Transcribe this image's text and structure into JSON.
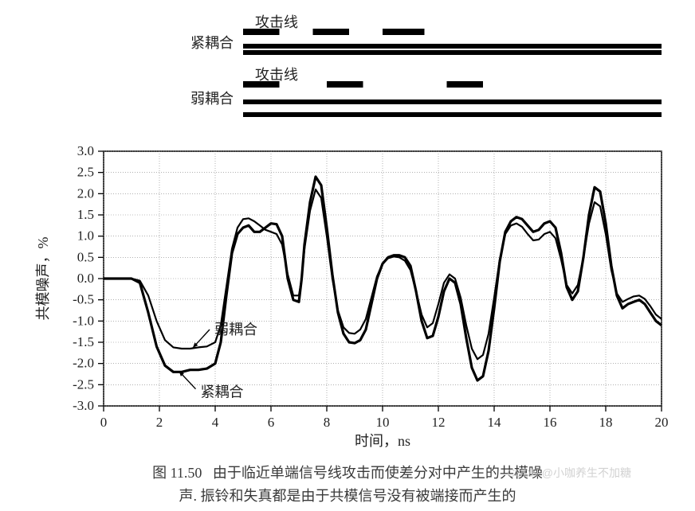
{
  "legend_diagram": {
    "label_tight_coupling": "紧耦合",
    "label_loose_coupling": "弱耦合",
    "label_attack_line": "攻击线",
    "line_color": "#000000",
    "attack_segments_tight_x": [
      [
        5.0,
        6.3
      ],
      [
        7.5,
        8.8
      ],
      [
        10.0,
        11.5
      ]
    ],
    "attack_segments_loose_x": [
      [
        5.0,
        6.3
      ],
      [
        8.0,
        9.3
      ],
      [
        12.3,
        13.6
      ]
    ],
    "full_line_x": [
      5.0,
      20.0
    ],
    "font_size": 18
  },
  "chart": {
    "type": "line",
    "background_color": "#ffffff",
    "grid_color": "#808080",
    "frame_color": "#000000",
    "xlabel": "时间，ns",
    "ylabel": "共模噪声，%",
    "label_fontsize": 18,
    "tick_fontsize": 17,
    "xlim": [
      0,
      20
    ],
    "ylim": [
      -3.0,
      3.0
    ],
    "xtick_step": 2,
    "ytick_step": 0.5,
    "line_width_main": 3.2,
    "line_width_secondary": 2.2,
    "line_color": "#000000",
    "annotation_tight": "紧耦合",
    "annotation_loose": "弱耦合",
    "series_tight": [
      [
        0.0,
        0.0
      ],
      [
        0.5,
        0.0
      ],
      [
        1.0,
        0.0
      ],
      [
        1.3,
        -0.1
      ],
      [
        1.6,
        -0.8
      ],
      [
        1.9,
        -1.6
      ],
      [
        2.2,
        -2.05
      ],
      [
        2.5,
        -2.2
      ],
      [
        2.8,
        -2.2
      ],
      [
        3.1,
        -2.15
      ],
      [
        3.4,
        -2.15
      ],
      [
        3.7,
        -2.12
      ],
      [
        4.0,
        -2.0
      ],
      [
        4.2,
        -1.5
      ],
      [
        4.4,
        -0.4
      ],
      [
        4.6,
        0.6
      ],
      [
        4.8,
        1.05
      ],
      [
        5.0,
        1.2
      ],
      [
        5.2,
        1.25
      ],
      [
        5.4,
        1.1
      ],
      [
        5.6,
        1.1
      ],
      [
        5.8,
        1.2
      ],
      [
        6.0,
        1.3
      ],
      [
        6.2,
        1.28
      ],
      [
        6.4,
        1.0
      ],
      [
        6.6,
        0.0
      ],
      [
        6.8,
        -0.5
      ],
      [
        7.0,
        -0.55
      ],
      [
        7.1,
        0.0
      ],
      [
        7.2,
        0.8
      ],
      [
        7.4,
        1.8
      ],
      [
        7.6,
        2.4
      ],
      [
        7.8,
        2.2
      ],
      [
        8.0,
        1.2
      ],
      [
        8.2,
        0.1
      ],
      [
        8.4,
        -0.8
      ],
      [
        8.6,
        -1.3
      ],
      [
        8.8,
        -1.5
      ],
      [
        9.0,
        -1.52
      ],
      [
        9.2,
        -1.45
      ],
      [
        9.4,
        -1.2
      ],
      [
        9.6,
        -0.6
      ],
      [
        9.8,
        0.0
      ],
      [
        10.0,
        0.35
      ],
      [
        10.2,
        0.5
      ],
      [
        10.4,
        0.55
      ],
      [
        10.6,
        0.55
      ],
      [
        10.8,
        0.5
      ],
      [
        11.0,
        0.3
      ],
      [
        11.2,
        -0.3
      ],
      [
        11.4,
        -1.0
      ],
      [
        11.6,
        -1.4
      ],
      [
        11.8,
        -1.35
      ],
      [
        12.0,
        -0.9
      ],
      [
        12.2,
        -0.3
      ],
      [
        12.4,
        0.0
      ],
      [
        12.6,
        -0.1
      ],
      [
        12.8,
        -0.6
      ],
      [
        13.0,
        -1.4
      ],
      [
        13.2,
        -2.1
      ],
      [
        13.4,
        -2.4
      ],
      [
        13.6,
        -2.3
      ],
      [
        13.8,
        -1.7
      ],
      [
        14.0,
        -0.7
      ],
      [
        14.2,
        0.4
      ],
      [
        14.4,
        1.1
      ],
      [
        14.6,
        1.35
      ],
      [
        14.8,
        1.45
      ],
      [
        15.0,
        1.4
      ],
      [
        15.2,
        1.25
      ],
      [
        15.4,
        1.1
      ],
      [
        15.6,
        1.15
      ],
      [
        15.8,
        1.3
      ],
      [
        16.0,
        1.35
      ],
      [
        16.2,
        1.2
      ],
      [
        16.4,
        0.6
      ],
      [
        16.6,
        -0.2
      ],
      [
        16.8,
        -0.5
      ],
      [
        17.0,
        -0.3
      ],
      [
        17.2,
        0.5
      ],
      [
        17.4,
        1.5
      ],
      [
        17.6,
        2.15
      ],
      [
        17.8,
        2.05
      ],
      [
        18.0,
        1.3
      ],
      [
        18.2,
        0.3
      ],
      [
        18.4,
        -0.4
      ],
      [
        18.6,
        -0.7
      ],
      [
        18.8,
        -0.6
      ],
      [
        19.0,
        -0.55
      ],
      [
        19.2,
        -0.5
      ],
      [
        19.4,
        -0.6
      ],
      [
        19.6,
        -0.8
      ],
      [
        19.8,
        -1.0
      ],
      [
        20.0,
        -1.1
      ]
    ],
    "series_loose": [
      [
        0.0,
        0.0
      ],
      [
        0.5,
        0.0
      ],
      [
        1.0,
        0.0
      ],
      [
        1.3,
        -0.05
      ],
      [
        1.6,
        -0.4
      ],
      [
        1.9,
        -1.0
      ],
      [
        2.2,
        -1.45
      ],
      [
        2.5,
        -1.62
      ],
      [
        2.8,
        -1.65
      ],
      [
        3.1,
        -1.65
      ],
      [
        3.4,
        -1.62
      ],
      [
        3.7,
        -1.6
      ],
      [
        4.0,
        -1.5
      ],
      [
        4.2,
        -1.1
      ],
      [
        4.4,
        -0.2
      ],
      [
        4.6,
        0.7
      ],
      [
        4.8,
        1.2
      ],
      [
        5.0,
        1.4
      ],
      [
        5.2,
        1.42
      ],
      [
        5.4,
        1.35
      ],
      [
        5.6,
        1.25
      ],
      [
        5.8,
        1.15
      ],
      [
        6.0,
        1.1
      ],
      [
        6.2,
        1.05
      ],
      [
        6.4,
        0.8
      ],
      [
        6.6,
        0.1
      ],
      [
        6.8,
        -0.4
      ],
      [
        7.0,
        -0.4
      ],
      [
        7.1,
        0.0
      ],
      [
        7.2,
        0.7
      ],
      [
        7.4,
        1.6
      ],
      [
        7.6,
        2.1
      ],
      [
        7.8,
        1.9
      ],
      [
        8.0,
        1.0
      ],
      [
        8.2,
        0.0
      ],
      [
        8.4,
        -0.75
      ],
      [
        8.6,
        -1.15
      ],
      [
        8.8,
        -1.28
      ],
      [
        9.0,
        -1.3
      ],
      [
        9.2,
        -1.2
      ],
      [
        9.4,
        -0.95
      ],
      [
        9.6,
        -0.45
      ],
      [
        9.8,
        0.05
      ],
      [
        10.0,
        0.35
      ],
      [
        10.2,
        0.48
      ],
      [
        10.4,
        0.52
      ],
      [
        10.6,
        0.5
      ],
      [
        10.8,
        0.42
      ],
      [
        11.0,
        0.2
      ],
      [
        11.2,
        -0.3
      ],
      [
        11.4,
        -0.85
      ],
      [
        11.6,
        -1.15
      ],
      [
        11.8,
        -1.05
      ],
      [
        12.0,
        -0.6
      ],
      [
        12.2,
        -0.1
      ],
      [
        12.4,
        0.1
      ],
      [
        12.6,
        0.0
      ],
      [
        12.8,
        -0.45
      ],
      [
        13.0,
        -1.1
      ],
      [
        13.2,
        -1.65
      ],
      [
        13.4,
        -1.9
      ],
      [
        13.6,
        -1.8
      ],
      [
        13.8,
        -1.3
      ],
      [
        14.0,
        -0.45
      ],
      [
        14.2,
        0.45
      ],
      [
        14.4,
        1.05
      ],
      [
        14.6,
        1.25
      ],
      [
        14.8,
        1.3
      ],
      [
        15.0,
        1.22
      ],
      [
        15.2,
        1.05
      ],
      [
        15.4,
        0.9
      ],
      [
        15.6,
        0.92
      ],
      [
        15.8,
        1.05
      ],
      [
        16.0,
        1.1
      ],
      [
        16.2,
        0.95
      ],
      [
        16.4,
        0.45
      ],
      [
        16.6,
        -0.15
      ],
      [
        16.8,
        -0.35
      ],
      [
        17.0,
        -0.15
      ],
      [
        17.2,
        0.5
      ],
      [
        17.4,
        1.3
      ],
      [
        17.6,
        1.8
      ],
      [
        17.8,
        1.7
      ],
      [
        18.0,
        1.05
      ],
      [
        18.2,
        0.2
      ],
      [
        18.4,
        -0.35
      ],
      [
        18.6,
        -0.55
      ],
      [
        18.8,
        -0.48
      ],
      [
        19.0,
        -0.42
      ],
      [
        19.2,
        -0.4
      ],
      [
        19.4,
        -0.48
      ],
      [
        19.6,
        -0.65
      ],
      [
        19.8,
        -0.85
      ],
      [
        20.0,
        -0.95
      ]
    ],
    "arrow_tight_from": [
      3.3,
      -2.6
    ],
    "arrow_tight_to": [
      2.7,
      -2.18
    ],
    "arrow_loose_from": [
      3.8,
      -1.2
    ],
    "arrow_loose_to": [
      3.2,
      -1.63
    ]
  },
  "caption": {
    "fig_label": "图 11.50",
    "line1": "由于临近单端信号线攻击而使差分对中产生的共模噪",
    "line2": "声. 振铃和失真都是由于共模信号没有被端接而产生的"
  },
  "watermark": "CSDN @小咖养生不加糖"
}
